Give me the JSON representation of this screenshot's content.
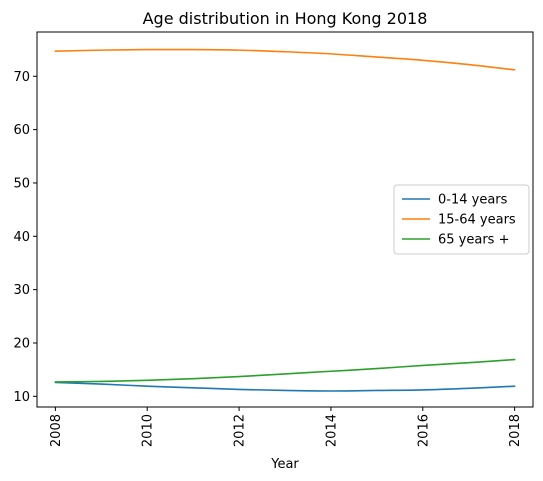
{
  "chart_data": {
    "type": "line",
    "title": "Age distribution in Hong Kong 2018",
    "xlabel": "Year",
    "ylabel": "",
    "xlim": [
      2007.6,
      2018.4
    ],
    "ylim": [
      8,
      78.3
    ],
    "x_ticks": [
      "2008",
      "2010",
      "2012",
      "2014",
      "2016",
      "2018"
    ],
    "y_ticks": [
      "10",
      "20",
      "30",
      "40",
      "50",
      "60",
      "70"
    ],
    "x": [
      2008,
      2009,
      2010,
      2011,
      2012,
      2013,
      2014,
      2015,
      2016,
      2017,
      2018
    ],
    "series": [
      {
        "name": "0-14 years",
        "color": "#1f77b4",
        "values": [
          12.6,
          12.3,
          11.9,
          11.6,
          11.3,
          11.1,
          11.0,
          11.1,
          11.2,
          11.5,
          11.9
        ]
      },
      {
        "name": "15-64 years",
        "color": "#ff7f0e",
        "values": [
          74.7,
          74.9,
          75.0,
          75.0,
          74.9,
          74.6,
          74.2,
          73.6,
          73.0,
          72.2,
          71.2
        ]
      },
      {
        "name": "65 years +",
        "color": "#2ca02c",
        "values": [
          12.7,
          12.8,
          13.0,
          13.3,
          13.7,
          14.2,
          14.7,
          15.2,
          15.8,
          16.3,
          16.9
        ]
      }
    ],
    "legend": {
      "position": "center-right"
    },
    "grid": false
  }
}
